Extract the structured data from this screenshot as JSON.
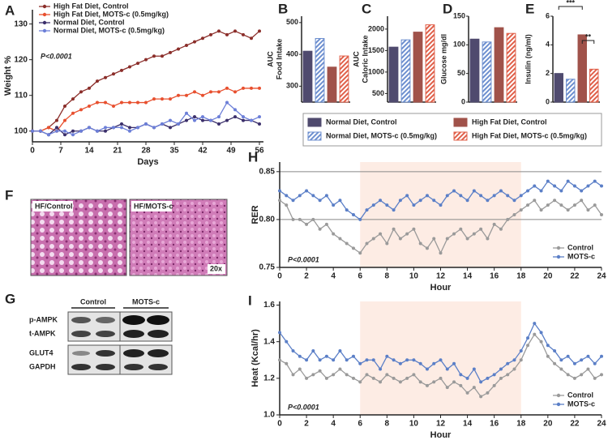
{
  "chart_data": [
    {
      "type": "line",
      "panel": "A",
      "ylabel": "Weight %",
      "xlabel": "Days",
      "annotation": "P<0.0001",
      "legend": "upper left",
      "x": [
        0,
        2,
        4,
        6,
        8,
        10,
        12,
        14,
        16,
        18,
        20,
        22,
        24,
        26,
        28,
        30,
        32,
        34,
        36,
        38,
        40,
        42,
        44,
        46,
        48,
        50,
        52,
        54,
        56
      ],
      "xlim": [
        0,
        57
      ],
      "xticks": [
        0,
        7,
        14,
        21,
        28,
        35,
        42,
        49,
        56
      ],
      "ylim": [
        97,
        134
      ],
      "yticks": [
        100,
        110,
        120,
        130
      ],
      "series": [
        {
          "name": "High Fat Diet, Control",
          "color": "#8b2e2a",
          "values": [
            100,
            100,
            101,
            103,
            107,
            109,
            111,
            112,
            114,
            115,
            116,
            117,
            118,
            119,
            120,
            121,
            121,
            122,
            123,
            124,
            125,
            126,
            127,
            128,
            127,
            128,
            127,
            126,
            128
          ]
        },
        {
          "name": "High Fat Diet, MOTS-c (0.5mg/kg)",
          "color": "#e8502f",
          "values": [
            100,
            100,
            101,
            100,
            103,
            105,
            106,
            107,
            108,
            108,
            107,
            108,
            108,
            108,
            108,
            109,
            109,
            109,
            110,
            110,
            111,
            110,
            111,
            111,
            112,
            111,
            112,
            112,
            112
          ]
        },
        {
          "name": "Normal Diet, Control",
          "color": "#3b2f6b",
          "values": [
            100,
            100,
            99,
            101,
            99,
            100,
            100,
            101,
            100,
            100,
            101,
            102,
            101,
            101,
            102,
            101,
            102,
            101,
            102,
            103,
            104,
            103,
            103,
            102,
            103,
            104,
            103,
            103,
            102
          ]
        },
        {
          "name": "Normal Diet, MOTS-c (0.5mg/kg)",
          "color": "#6c7fd8",
          "values": [
            100,
            100,
            99,
            100,
            100,
            99,
            100,
            101,
            100,
            101,
            101,
            101,
            100,
            101,
            102,
            101,
            102,
            103,
            102,
            105,
            103,
            104,
            103,
            104,
            108,
            106,
            104,
            103,
            104
          ]
        }
      ]
    },
    {
      "type": "bar",
      "panel": "B",
      "ylabel": [
        "AUC",
        "Food Intake"
      ],
      "ylim": [
        250,
        520
      ],
      "yticks": [
        300,
        400,
        500
      ],
      "values": [
        410,
        450,
        360,
        395
      ]
    },
    {
      "type": "bar",
      "panel": "C",
      "ylabel": [
        "AUC",
        "Caloric Intake"
      ],
      "ylim": [
        300,
        2300
      ],
      "yticks": [
        500,
        1000,
        1500,
        2000
      ],
      "values": [
        1580,
        1750,
        1930,
        2100
      ]
    },
    {
      "type": "bar",
      "panel": "D",
      "ylabel": [
        "Glucose mg/dl"
      ],
      "ylim": [
        0,
        150
      ],
      "yticks": [
        0,
        50,
        100,
        150
      ],
      "values": [
        110,
        105,
        130,
        120
      ]
    },
    {
      "type": "bar",
      "panel": "E",
      "ylabel": [
        "Insulin (ng/ml)"
      ],
      "ylim": [
        0,
        6
      ],
      "yticks": [
        0,
        2,
        4,
        6
      ],
      "values": [
        2.0,
        1.6,
        4.7,
        2.3
      ],
      "annotations": [
        "***",
        "**"
      ]
    },
    {
      "type": "line",
      "panel": "H",
      "ylabel": "RER",
      "xlabel": "Hour",
      "annotation": "P<0.0001",
      "legend": "lower right",
      "x": [
        0,
        0.5,
        1,
        1.5,
        2,
        2.5,
        3,
        3.5,
        4,
        4.5,
        5,
        5.5,
        6,
        6.5,
        7,
        7.5,
        8,
        8.5,
        9,
        9.5,
        10,
        10.5,
        11,
        11.5,
        12,
        12.5,
        13,
        13.5,
        14,
        14.5,
        15,
        15.5,
        16,
        16.5,
        17,
        17.5,
        18,
        18.5,
        19,
        19.5,
        20,
        20.5,
        21,
        21.5,
        22,
        22.5,
        23,
        23.5,
        24
      ],
      "xlim": [
        0,
        24
      ],
      "xticks": [
        0,
        2,
        4,
        6,
        8,
        10,
        12,
        14,
        16,
        18,
        20,
        22,
        24
      ],
      "ylim": [
        0.75,
        0.86
      ],
      "yticks": [
        0.75,
        {
          "value": 0.8,
          "label": "0.80"
        },
        0.85
      ],
      "hlines": [
        0.8,
        0.85
      ],
      "shaded": [
        6,
        18
      ],
      "series": [
        {
          "name": "Control",
          "color": "#9a9a9a",
          "values": [
            0.82,
            0.815,
            0.8,
            0.8,
            0.795,
            0.8,
            0.79,
            0.795,
            0.785,
            0.78,
            0.775,
            0.77,
            0.765,
            0.775,
            0.78,
            0.785,
            0.775,
            0.79,
            0.78,
            0.785,
            0.79,
            0.775,
            0.77,
            0.78,
            0.765,
            0.78,
            0.785,
            0.79,
            0.78,
            0.785,
            0.79,
            0.78,
            0.795,
            0.79,
            0.8,
            0.805,
            0.81,
            0.815,
            0.82,
            0.81,
            0.815,
            0.82,
            0.815,
            0.81,
            0.815,
            0.82,
            0.81,
            0.815,
            0.805
          ]
        },
        {
          "name": "MOTS-c",
          "color": "#5b7fc7",
          "values": [
            0.83,
            0.825,
            0.82,
            0.825,
            0.83,
            0.825,
            0.82,
            0.825,
            0.815,
            0.82,
            0.81,
            0.805,
            0.8,
            0.81,
            0.815,
            0.82,
            0.815,
            0.81,
            0.82,
            0.825,
            0.815,
            0.82,
            0.825,
            0.82,
            0.815,
            0.825,
            0.83,
            0.825,
            0.82,
            0.83,
            0.825,
            0.82,
            0.825,
            0.83,
            0.825,
            0.82,
            0.825,
            0.83,
            0.835,
            0.83,
            0.84,
            0.835,
            0.83,
            0.84,
            0.835,
            0.83,
            0.835,
            0.84,
            0.835
          ]
        }
      ]
    },
    {
      "type": "line",
      "panel": "I",
      "ylabel": "Heat  (Kcal/hr)",
      "xlabel": "Hour",
      "annotation": "P<0.0001",
      "legend": "lower right",
      "x": [
        0,
        0.5,
        1,
        1.5,
        2,
        2.5,
        3,
        3.5,
        4,
        4.5,
        5,
        5.5,
        6,
        6.5,
        7,
        7.5,
        8,
        8.5,
        9,
        9.5,
        10,
        10.5,
        11,
        11.5,
        12,
        12.5,
        13,
        13.5,
        14,
        14.5,
        15,
        15.5,
        16,
        16.5,
        17,
        17.5,
        18,
        18.5,
        19,
        19.5,
        20,
        20.5,
        21,
        21.5,
        22,
        22.5,
        23,
        23.5,
        24
      ],
      "xlim": [
        0,
        24
      ],
      "xticks": [
        0,
        2,
        4,
        6,
        8,
        10,
        12,
        14,
        16,
        18,
        20,
        22,
        24
      ],
      "ylim": [
        1.0,
        1.62
      ],
      "yticks": [
        {
          "value": 1,
          "label": "1.0"
        },
        1.2,
        1.4,
        1.6
      ],
      "shaded": [
        6,
        18
      ],
      "series": [
        {
          "name": "Control",
          "color": "#9a9a9a",
          "values": [
            1.3,
            1.28,
            1.22,
            1.25,
            1.2,
            1.22,
            1.24,
            1.2,
            1.22,
            1.25,
            1.22,
            1.2,
            1.18,
            1.22,
            1.2,
            1.18,
            1.22,
            1.2,
            1.18,
            1.2,
            1.22,
            1.18,
            1.16,
            1.18,
            1.2,
            1.15,
            1.18,
            1.16,
            1.12,
            1.15,
            1.1,
            1.12,
            1.16,
            1.2,
            1.22,
            1.25,
            1.3,
            1.38,
            1.44,
            1.4,
            1.32,
            1.28,
            1.25,
            1.22,
            1.2,
            1.22,
            1.25,
            1.2,
            1.22
          ]
        },
        {
          "name": "MOTS-c",
          "color": "#5b7fc7",
          "values": [
            1.45,
            1.4,
            1.35,
            1.32,
            1.3,
            1.35,
            1.3,
            1.32,
            1.3,
            1.35,
            1.3,
            1.32,
            1.28,
            1.3,
            1.3,
            1.25,
            1.32,
            1.3,
            1.28,
            1.3,
            1.3,
            1.28,
            1.25,
            1.28,
            1.3,
            1.25,
            1.28,
            1.22,
            1.2,
            1.25,
            1.18,
            1.2,
            1.22,
            1.25,
            1.28,
            1.3,
            1.35,
            1.42,
            1.5,
            1.45,
            1.38,
            1.35,
            1.3,
            1.32,
            1.28,
            1.3,
            1.32,
            1.28,
            1.32
          ]
        }
      ]
    }
  ],
  "bar_legend": [
    {
      "name": "Normal Diet, Control",
      "color": "#4f4a6e",
      "hatched": false
    },
    {
      "name": "Normal Diet, MOTS-c (0.5mg/kg)",
      "color": "#6d8fcf",
      "hatched": true
    },
    {
      "name": "High Fat Diet, Control",
      "color": "#a0524a",
      "hatched": false
    },
    {
      "name": "High Fat Diet, MOTS-c (0.5mg/kg)",
      "color": "#e0604a",
      "hatched": true
    }
  ],
  "histology": {
    "panel": "F",
    "left": "HF/Control",
    "right": "HF/MOTS-c",
    "magnification": "20x"
  },
  "western_blot": {
    "panel": "G",
    "groups": [
      "Control",
      "MOTS-c"
    ],
    "rows": [
      "p-AMPK",
      "t-AMPK",
      "GLUT4",
      "GAPDH"
    ]
  }
}
